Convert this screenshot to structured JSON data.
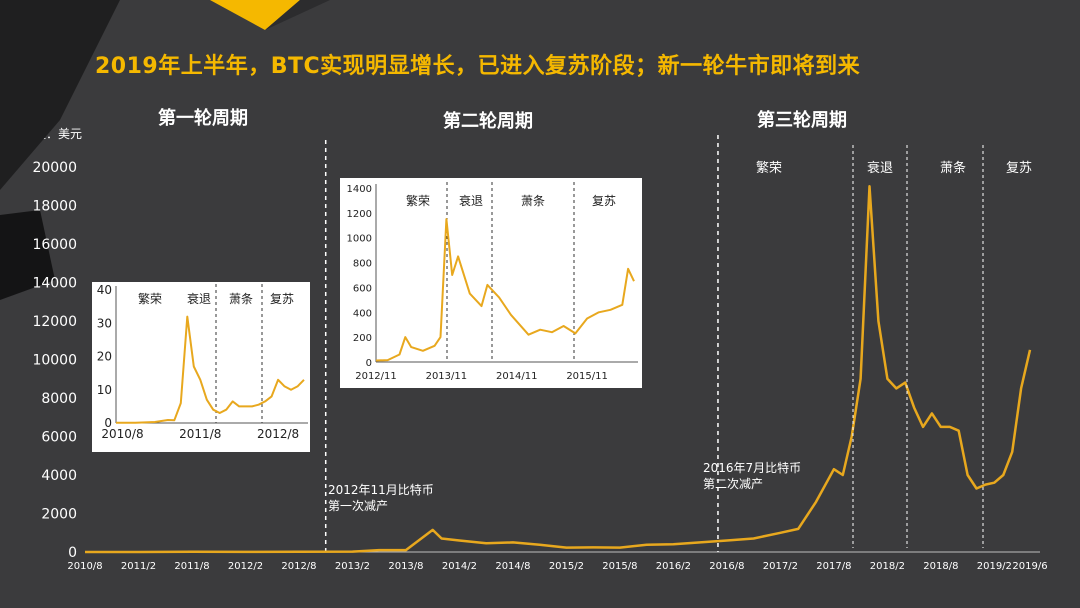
{
  "page": {
    "title": "2019年上半年，BTC实现明显增长，已进入复苏阶段；新一轮牛市即将到来",
    "unit_label": "单位：美元",
    "cycles": [
      "第一轮周期",
      "第二轮周期",
      "第三轮周期"
    ],
    "halving_notes": [
      {
        "line1": "2012年11月比特币",
        "line2": "第一次减产"
      },
      {
        "line1": "2016年7月比特币",
        "line2": "第二次减产"
      }
    ],
    "colors": {
      "background": "#3b3b3d",
      "accent": "#f5b800",
      "line": "#e8a81e",
      "text": "#ffffff"
    },
    "phases": [
      "繁荣",
      "衰退",
      "萧条",
      "复苏"
    ]
  },
  "chart_data": [
    {
      "type": "line",
      "name": "main",
      "x_ticks": [
        "2010/8",
        "2011/2",
        "2011/8",
        "2012/2",
        "2012/8",
        "2013/2",
        "2013/8",
        "2014/2",
        "2014/8",
        "2015/2",
        "2015/8",
        "2016/2",
        "2016/8",
        "2017/2",
        "2017/8",
        "2018/2",
        "2018/8",
        "2019/2",
        "2019/6"
      ],
      "y_ticks": [
        0,
        2000,
        4000,
        6000,
        8000,
        10000,
        12000,
        14000,
        16000,
        18000,
        20000
      ],
      "ylim": [
        0,
        20000
      ],
      "series": [
        {
          "x": [
            "2010/8",
            "2011/2",
            "2011/8",
            "2012/2",
            "2012/8",
            "2013/2",
            "2013/5",
            "2013/8",
            "2013/11",
            "2013/12",
            "2014/2",
            "2014/5",
            "2014/8",
            "2014/11",
            "2015/2",
            "2015/5",
            "2015/8",
            "2015/11",
            "2016/2",
            "2016/5",
            "2016/8",
            "2016/11",
            "2017/2",
            "2017/4",
            "2017/6",
            "2017/8",
            "2017/9",
            "2017/10",
            "2017/11",
            "2017/12",
            "2018/1",
            "2018/2",
            "2018/3",
            "2018/4",
            "2018/5",
            "2018/6",
            "2018/7",
            "2018/8",
            "2018/9",
            "2018/10",
            "2018/11",
            "2018/12",
            "2019/1",
            "2019/2",
            "2019/3",
            "2019/4",
            "2019/5",
            "2019/6"
          ],
          "y": [
            0,
            1,
            10,
            5,
            10,
            20,
            100,
            100,
            1150,
            700,
            600,
            450,
            500,
            380,
            230,
            240,
            230,
            380,
            400,
            500,
            600,
            700,
            1000,
            1200,
            2600,
            4300,
            4000,
            6000,
            9000,
            19000,
            12000,
            9000,
            8500,
            8800,
            7500,
            6500,
            7200,
            6500,
            6500,
            6300,
            4000,
            3300,
            3500,
            3600,
            4000,
            5200,
            8500,
            10500
          ]
        }
      ],
      "annotations": [
        {
          "at": "2012/11",
          "text": "2012年11月比特币第一次减产"
        },
        {
          "at": "2016/7",
          "text": "2016年7月比特币第二次减产"
        }
      ],
      "phase_labels": [
        "繁荣",
        "衰退",
        "萧条",
        "复苏"
      ]
    },
    {
      "type": "line",
      "name": "inset1",
      "x_ticks": [
        "2010/8",
        "2011/8",
        "2012/8"
      ],
      "y_ticks": [
        0,
        10,
        20,
        30,
        40
      ],
      "ylim": [
        0,
        40
      ],
      "phase_labels": [
        "繁荣",
        "衰退",
        "萧条",
        "复苏"
      ],
      "series": [
        {
          "x": [
            "2010/7",
            "2010/10",
            "2011/1",
            "2011/3",
            "2011/4",
            "2011/5",
            "2011/6",
            "2011/7",
            "2011/8",
            "2011/9",
            "2011/10",
            "2011/11",
            "2011/12",
            "2012/1",
            "2012/2",
            "2012/3",
            "2012/4",
            "2012/5",
            "2012/6",
            "2012/7",
            "2012/8",
            "2012/9",
            "2012/10",
            "2012/11",
            "2012/12"
          ],
          "y": [
            0.05,
            0.1,
            0.3,
            0.9,
            0.8,
            6,
            32,
            17,
            13,
            7,
            4,
            3,
            4,
            6.5,
            5,
            5,
            5,
            5.5,
            6.5,
            8,
            13,
            11,
            10,
            11,
            13
          ]
        }
      ]
    },
    {
      "type": "line",
      "name": "inset2",
      "x_ticks": [
        "2012/11",
        "2013/11",
        "2014/11",
        "2015/11"
      ],
      "y_ticks": [
        0,
        200,
        400,
        600,
        800,
        1000,
        1200,
        1400
      ],
      "ylim": [
        0,
        1400
      ],
      "phase_labels": [
        "繁荣",
        "衰退",
        "萧条",
        "复苏"
      ],
      "series": [
        {
          "x": [
            "2012/11",
            "2013/1",
            "2013/3",
            "2013/4",
            "2013/5",
            "2013/7",
            "2013/9",
            "2013/10",
            "2013/11",
            "2013/12",
            "2014/1",
            "2014/3",
            "2014/5",
            "2014/6",
            "2014/8",
            "2014/10",
            "2015/1",
            "2015/3",
            "2015/5",
            "2015/7",
            "2015/9",
            "2015/11",
            "2016/1",
            "2016/3",
            "2016/5",
            "2016/6",
            "2016/7"
          ],
          "y": [
            12,
            15,
            60,
            200,
            120,
            90,
            130,
            200,
            1150,
            700,
            850,
            550,
            450,
            620,
            520,
            380,
            220,
            260,
            240,
            290,
            230,
            350,
            400,
            420,
            460,
            750,
            650
          ]
        }
      ]
    },
    {
      "type": "line",
      "name": "lower-inset-x-ticks",
      "x_ticks": [
        "2012/11",
        "2013/11",
        "2014/11",
        "2015/11"
      ]
    }
  ]
}
